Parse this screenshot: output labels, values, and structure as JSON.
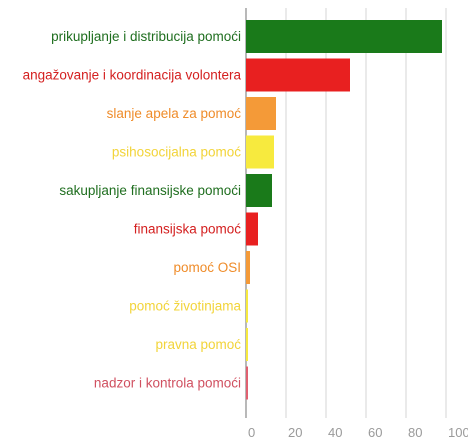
{
  "chart_data": {
    "type": "bar",
    "orientation": "horizontal",
    "categories": [
      "prikupljanje i distribucija pomoći",
      "angažovanje i koordinacija volontera",
      "slanje apela za pomoć",
      "psihosocijalna pomoć",
      "sakupljanje finansijske pomoći",
      "finansijska pomoć",
      "pomoć OSI",
      "pomoć životinjama",
      "pravna pomoć",
      "nadzor i kontrola pomoći"
    ],
    "values": [
      98,
      52,
      15,
      14,
      13,
      6,
      2,
      1,
      1,
      1
    ],
    "colors": [
      "#1a7a1a",
      "#e82020",
      "#f49a38",
      "#f7ea3e",
      "#1a7a1a",
      "#e82020",
      "#f49a38",
      "#f7ea3e",
      "#f7ea3e",
      "#e06070"
    ],
    "label_colors": [
      "#1f6e1f",
      "#d42020",
      "#ef8c2a",
      "#f2d43a",
      "#1f6e1f",
      "#d42020",
      "#ef8c2a",
      "#f2d43a",
      "#f2d43a",
      "#d05060"
    ],
    "xlim": [
      0,
      100
    ],
    "xticks": [
      "0",
      "20",
      "40",
      "60",
      "80",
      "100"
    ],
    "grid": true,
    "title": "",
    "xlabel": "",
    "ylabel": ""
  }
}
